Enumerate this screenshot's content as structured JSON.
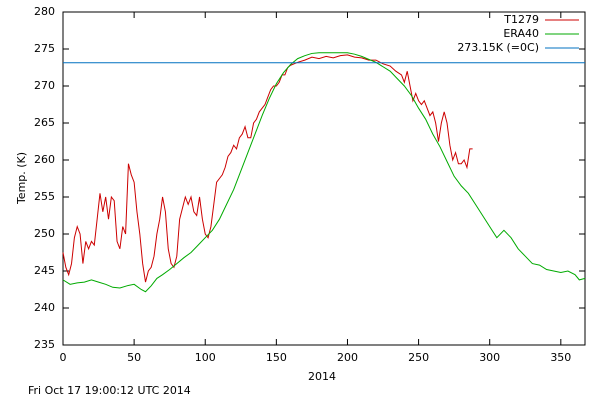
{
  "chart_data": {
    "type": "line",
    "x_label": "2014",
    "y_label": "Temp. (K)",
    "footer": "Fri Oct 17 19:00:12 UTC 2014",
    "xlim": [
      0,
      367
    ],
    "ylim": [
      235,
      280
    ],
    "xticks": [
      0,
      50,
      100,
      150,
      200,
      250,
      300,
      350
    ],
    "yticks": [
      235,
      240,
      245,
      250,
      255,
      260,
      265,
      270,
      275,
      280
    ],
    "legend": "upper right",
    "series": [
      {
        "name": "T1279",
        "color": "#cc0000",
        "x": [
          0,
          2,
          4,
          6,
          8,
          10,
          12,
          14,
          16,
          18,
          20,
          22,
          24,
          26,
          28,
          30,
          32,
          34,
          36,
          38,
          40,
          42,
          44,
          46,
          48,
          50,
          52,
          54,
          56,
          58,
          60,
          62,
          64,
          66,
          68,
          70,
          72,
          74,
          76,
          78,
          80,
          82,
          84,
          86,
          88,
          90,
          92,
          94,
          96,
          98,
          100,
          102,
          104,
          106,
          108,
          110,
          112,
          114,
          116,
          118,
          120,
          122,
          124,
          126,
          128,
          130,
          132,
          134,
          136,
          138,
          140,
          142,
          144,
          146,
          148,
          150,
          152,
          154,
          156,
          158,
          160,
          165,
          170,
          175,
          180,
          185,
          190,
          195,
          200,
          205,
          210,
          215,
          220,
          225,
          230,
          234,
          238,
          240,
          242,
          244,
          246,
          248,
          250,
          252,
          254,
          256,
          258,
          260,
          262,
          264,
          266,
          268,
          270,
          272,
          274,
          276,
          278,
          280,
          282,
          284,
          286,
          288
        ],
        "values": [
          247.5,
          245.5,
          244.5,
          246,
          249.5,
          251,
          250,
          246,
          249,
          248,
          249,
          248.5,
          252,
          255.5,
          253,
          255,
          252,
          255,
          254.5,
          249,
          248,
          251,
          250,
          259.5,
          258,
          257,
          253,
          250,
          246,
          243.5,
          245,
          245.5,
          247,
          250,
          252,
          255,
          253,
          248,
          246,
          245.5,
          247,
          252,
          253.5,
          255,
          254,
          255,
          253,
          252.5,
          255,
          252,
          250,
          249.5,
          251,
          254,
          257,
          257.5,
          258,
          259,
          260.5,
          261,
          262,
          261.5,
          263,
          263.5,
          264.5,
          263,
          263,
          265,
          265.5,
          266.5,
          267,
          267.5,
          268.5,
          269.5,
          270,
          270,
          270.5,
          271.5,
          271.5,
          272.5,
          272.8,
          273.2,
          273.5,
          273.9,
          273.7,
          274,
          273.8,
          274.1,
          274.2,
          273.9,
          273.8,
          273.5,
          273.5,
          273,
          272.7,
          272,
          271.5,
          270.5,
          272,
          270,
          268,
          269,
          268,
          267.5,
          268,
          267,
          266,
          266.5,
          265,
          262.5,
          265,
          266.5,
          265,
          262,
          260,
          261,
          259.5,
          259.5,
          260,
          259,
          261.5,
          261.5
        ]
      },
      {
        "name": "ERA40",
        "color": "#00aa00",
        "x": [
          0,
          5,
          10,
          15,
          20,
          25,
          30,
          35,
          40,
          45,
          50,
          55,
          58,
          62,
          66,
          70,
          75,
          80,
          85,
          90,
          95,
          100,
          105,
          110,
          115,
          120,
          125,
          130,
          135,
          140,
          145,
          150,
          155,
          160,
          165,
          170,
          175,
          180,
          185,
          190,
          195,
          200,
          205,
          210,
          215,
          220,
          225,
          230,
          235,
          240,
          245,
          250,
          255,
          260,
          265,
          270,
          275,
          280,
          285,
          290,
          295,
          300,
          305,
          310,
          315,
          320,
          325,
          330,
          335,
          340,
          345,
          350,
          355,
          360,
          363,
          367
        ],
        "values": [
          243.8,
          243.2,
          243.4,
          243.5,
          243.8,
          243.5,
          243.2,
          242.8,
          242.7,
          243,
          243.2,
          242.5,
          242.2,
          243,
          244,
          244.5,
          245.2,
          246,
          246.8,
          247.5,
          248.5,
          249.5,
          250.5,
          252,
          254,
          256,
          258.5,
          261,
          263.5,
          266,
          268.3,
          270.3,
          271.8,
          272.9,
          273.7,
          274.1,
          274.4,
          274.5,
          274.5,
          274.5,
          274.5,
          274.5,
          274.3,
          274,
          273.6,
          273.2,
          272.6,
          272,
          271,
          270,
          268.7,
          267,
          265.5,
          263.5,
          261.8,
          259.8,
          257.8,
          256.5,
          255.5,
          254,
          252.5,
          251,
          249.5,
          250.5,
          249.5,
          248,
          247,
          246,
          245.8,
          245.2,
          245,
          244.8,
          245,
          244.5,
          243.8,
          244
        ]
      },
      {
        "name": "273.15K (=0C)",
        "color": "#0070c0",
        "x": [
          0,
          367
        ],
        "values": [
          273.15,
          273.15
        ]
      }
    ]
  }
}
